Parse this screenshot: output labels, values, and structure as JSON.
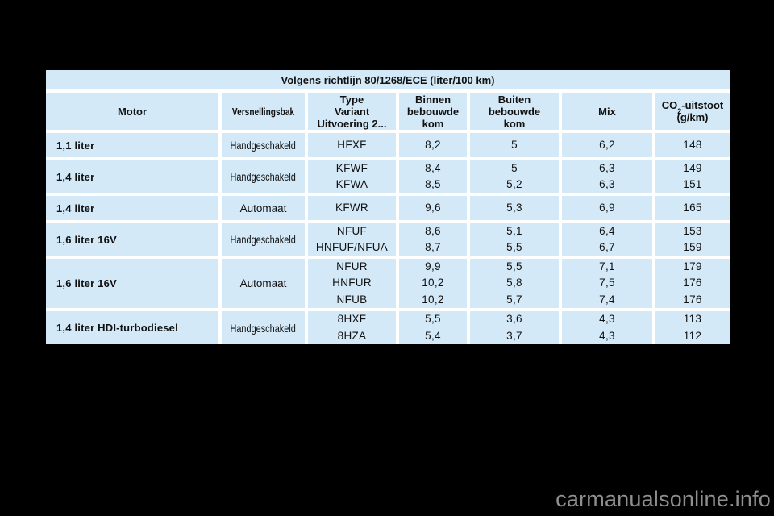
{
  "page": {
    "background_color": "#000000",
    "watermark": "carmanualsonline.info"
  },
  "table": {
    "title": "Volgens richtlijn 80/1268/ECE (liter/100 km)",
    "cell_color": "#d3e9f7",
    "columns": {
      "motor": "Motor",
      "gearbox": "Versnellingsbak",
      "type": "Type\nVariant\nUitvoering 2...",
      "urban": "Binnen\nbebouwde\nkom",
      "extra_urban": "Buiten\nbebouwde\nkom",
      "mix": "Mix",
      "co2_prefix": "CO",
      "co2_sub": "2",
      "co2_suffix": "-uitstoot",
      "co2_unit": "(g/km)"
    },
    "rows": [
      {
        "motor": "1,1 liter",
        "gearbox": "Handgeschakeld",
        "types": [
          "HFXF"
        ],
        "urban": [
          "8,2"
        ],
        "extra_urban": [
          "5"
        ],
        "mix": [
          "6,2"
        ],
        "co2": [
          "148"
        ]
      },
      {
        "motor": "1,4 liter",
        "gearbox": "Handgeschakeld",
        "types": [
          "KFWF",
          "KFWA"
        ],
        "urban": [
          "8,4",
          "8,5"
        ],
        "extra_urban": [
          "5",
          "5,2"
        ],
        "mix": [
          "6,3",
          "6,3"
        ],
        "co2": [
          "149",
          "151"
        ]
      },
      {
        "motor": "1,4 liter",
        "gearbox": "Automaat",
        "types": [
          "KFWR"
        ],
        "urban": [
          "9,6"
        ],
        "extra_urban": [
          "5,3"
        ],
        "mix": [
          "6,9"
        ],
        "co2": [
          "165"
        ]
      },
      {
        "motor": "1,6 liter 16V",
        "gearbox": "Handgeschakeld",
        "types": [
          "NFUF",
          "HNFUF/NFUA"
        ],
        "urban": [
          "8,6",
          "8,7"
        ],
        "extra_urban": [
          "5,1",
          "5,5"
        ],
        "mix": [
          "6,4",
          "6,7"
        ],
        "co2": [
          "153",
          "159"
        ]
      },
      {
        "motor": "1,6 liter 16V",
        "gearbox": "Automaat",
        "types": [
          "NFUR",
          "HNFUR",
          "NFUB"
        ],
        "urban": [
          "9,9",
          "10,2",
          "10,2"
        ],
        "extra_urban": [
          "5,5",
          "5,8",
          "5,7"
        ],
        "mix": [
          "7,1",
          "7,5",
          "7,4"
        ],
        "co2": [
          "179",
          "176",
          "176"
        ]
      },
      {
        "motor": "1,4 liter HDI-turbodiesel",
        "gearbox": "Handgeschakeld",
        "types": [
          "8HXF",
          "8HZA"
        ],
        "urban": [
          "5,5",
          "5,4"
        ],
        "extra_urban": [
          "3,6",
          "3,7"
        ],
        "mix": [
          "4,3",
          "4,3"
        ],
        "co2": [
          "113",
          "112"
        ]
      }
    ]
  }
}
